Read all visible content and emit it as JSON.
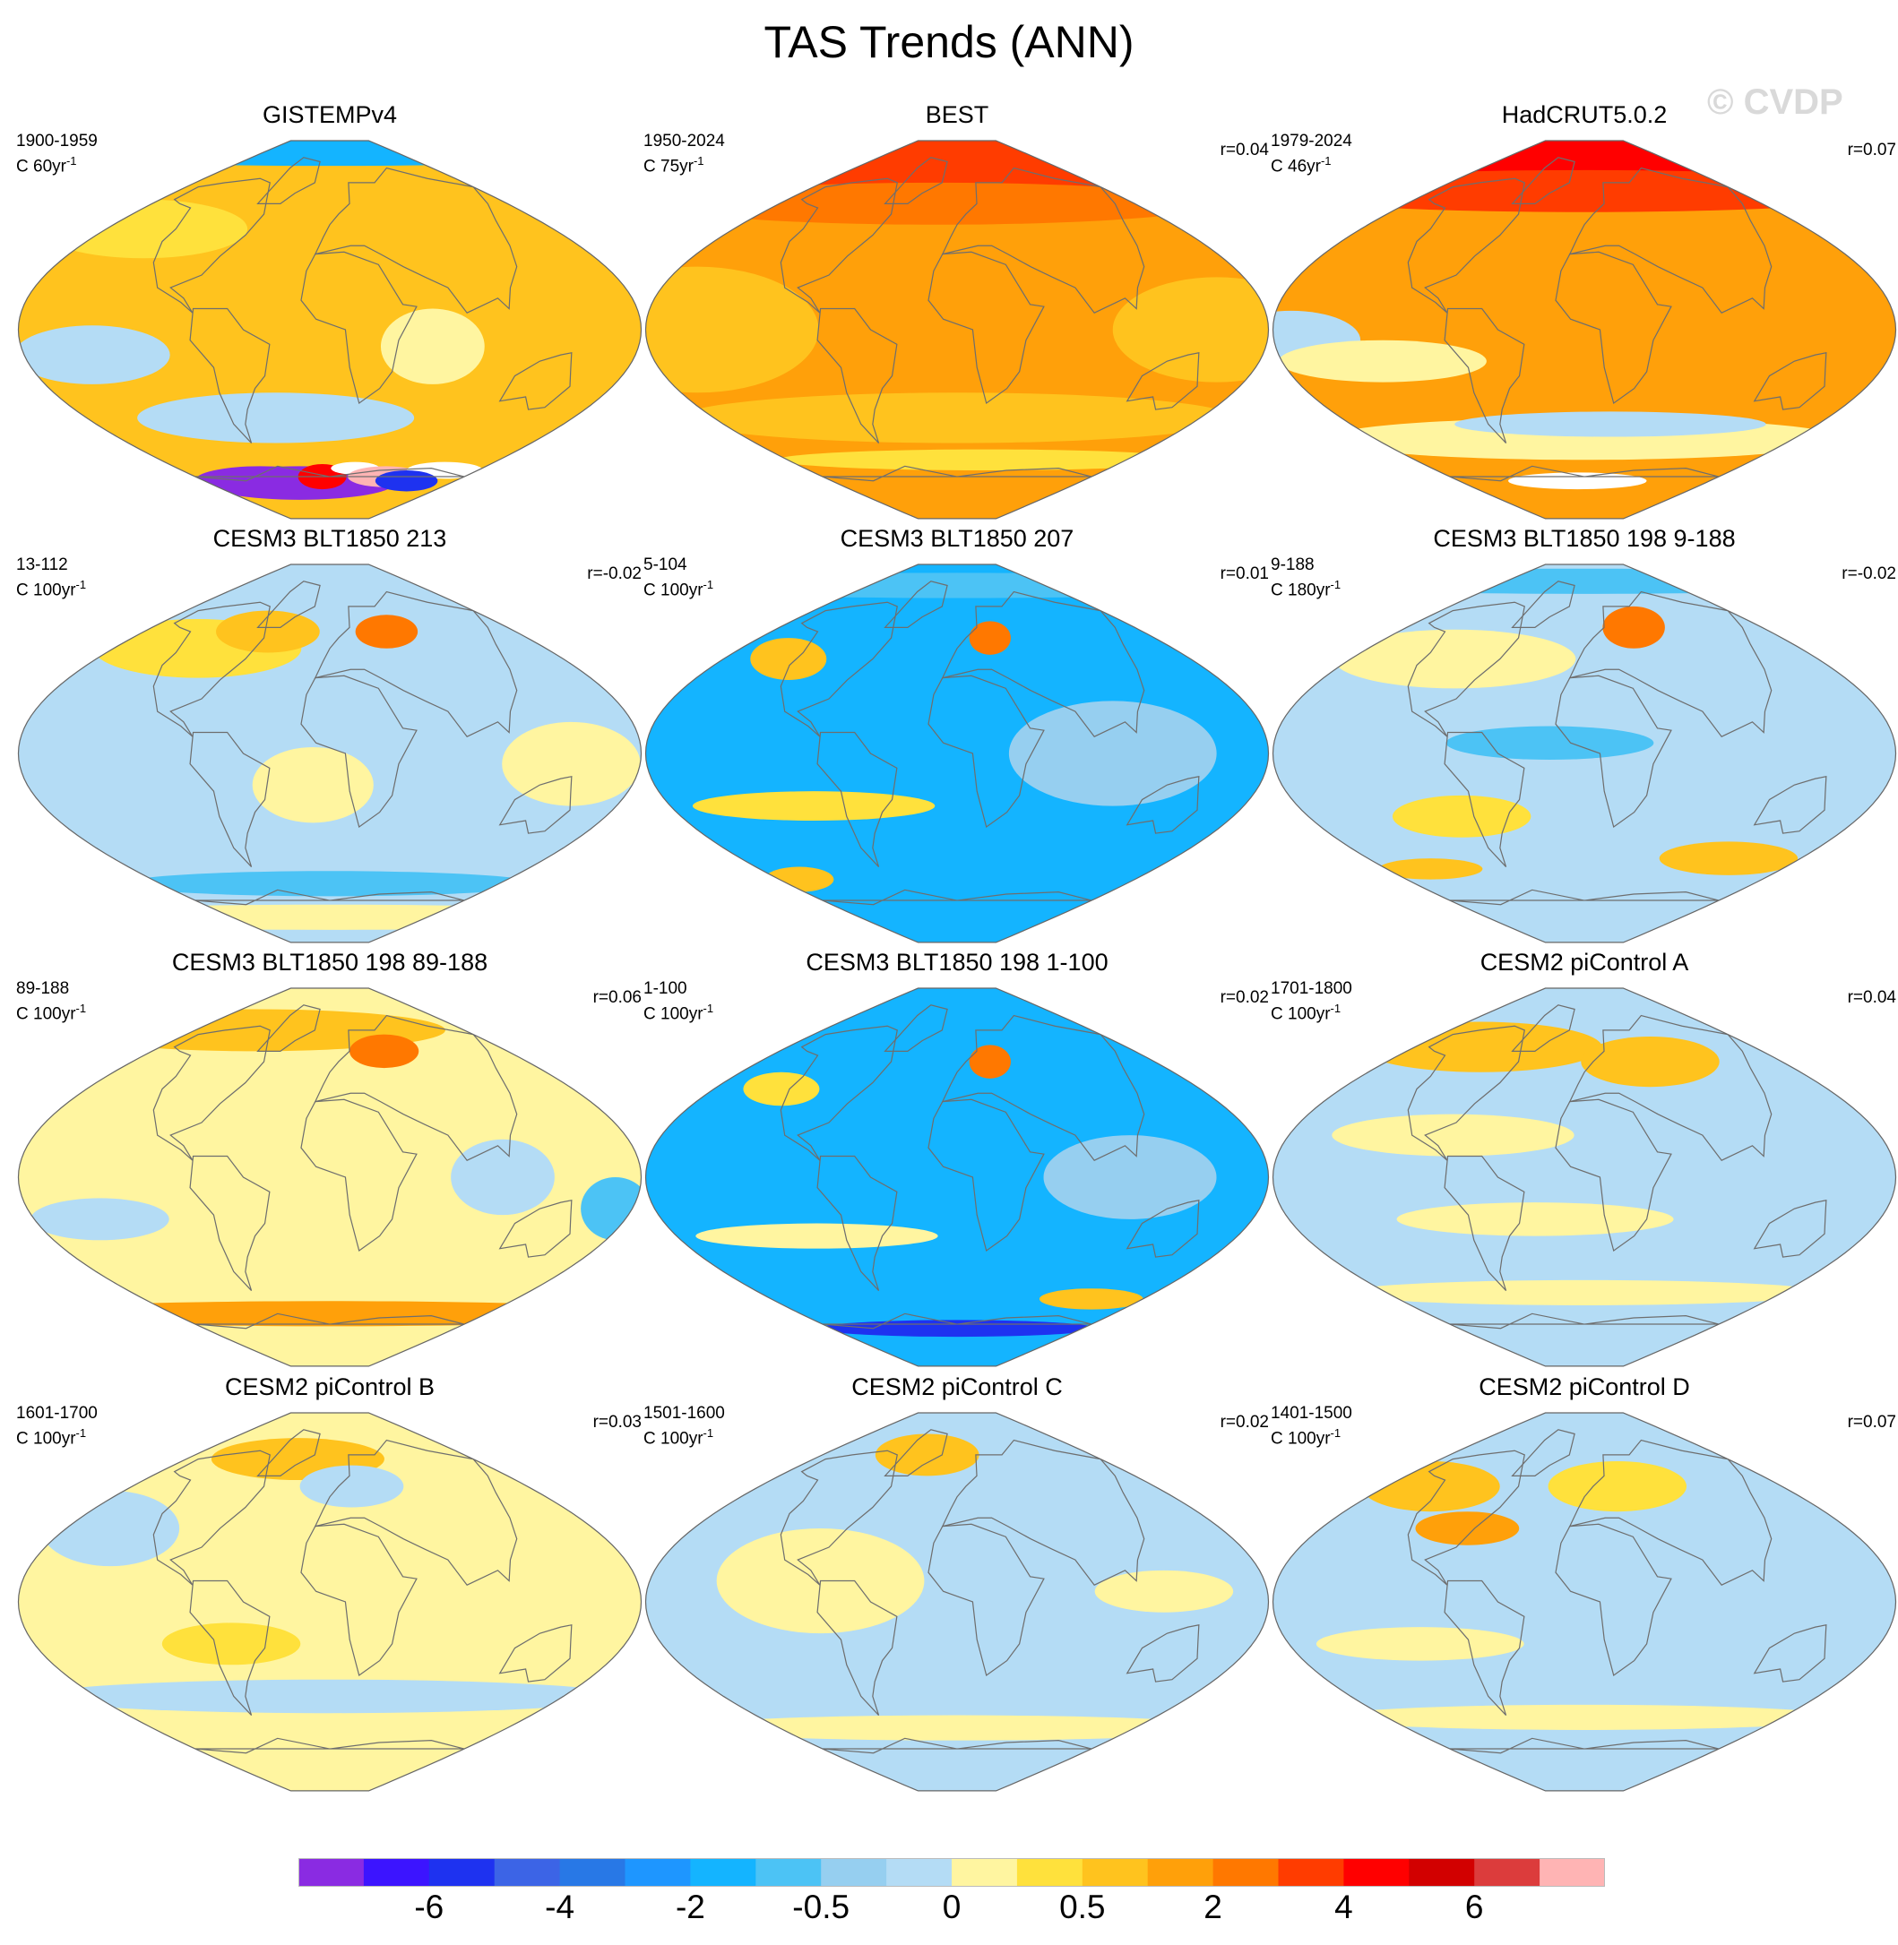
{
  "chart_data": {
    "type": "heatmap",
    "title": "TAS Trends (ANN)",
    "watermark": "© CVDP",
    "projection": "robinson",
    "colorbar": {
      "colors": [
        "#8a2be2",
        "#3c14ff",
        "#1e32f0",
        "#3c64e6",
        "#2878e6",
        "#1e96ff",
        "#14b4ff",
        "#4cc3f5",
        "#96cff0",
        "#b4dcf5",
        "#fff5a0",
        "#ffe13c",
        "#ffc31e",
        "#ffa00a",
        "#ff7800",
        "#ff3c00",
        "#ff0000",
        "#d20000",
        "#dc3c3c",
        "#ffb4b4"
      ],
      "tick_labels": [
        {
          "label": "-6",
          "index": 2
        },
        {
          "label": "-4",
          "index": 4
        },
        {
          "label": "-2",
          "index": 6
        },
        {
          "label": "-0.5",
          "index": 8
        },
        {
          "label": "0",
          "index": 10
        },
        {
          "label": "0.5",
          "index": 12
        },
        {
          "label": "2",
          "index": 14
        },
        {
          "label": "4",
          "index": 16
        },
        {
          "label": "6",
          "index": 18
        }
      ]
    },
    "panels": [
      {
        "title": "GISTEMPv4",
        "period": "1900-1959",
        "units": "C 60yr",
        "units_exp": "-1",
        "r": "",
        "base": "#ffc31e",
        "blobs": [
          {
            "lon": 0,
            "lat": 84,
            "rx": 190,
            "ry": 6,
            "c": "#14b4ff"
          },
          {
            "lon": -140,
            "lat": -12,
            "rx": 45,
            "ry": 14,
            "c": "#b4dcf5"
          },
          {
            "lon": -40,
            "lat": -42,
            "rx": 80,
            "ry": 12,
            "c": "#b4dcf5"
          },
          {
            "lon": 60,
            "lat": -8,
            "rx": 30,
            "ry": 18,
            "c": "#fff5a0"
          },
          {
            "lon": -150,
            "lat": 48,
            "rx": 60,
            "ry": 14,
            "c": "#ffe13c"
          },
          {
            "lon": -45,
            "lat": -73,
            "rx": 55,
            "ry": 8,
            "c": "#8a2be2"
          },
          {
            "lon": -100,
            "lat": -72,
            "rx": 38,
            "ry": 7,
            "c": "#8a2be2"
          },
          {
            "lon": -10,
            "lat": -70,
            "rx": 14,
            "ry": 6,
            "c": "#ff0000"
          },
          {
            "lon": 30,
            "lat": -66,
            "rx": 14,
            "ry": 3,
            "c": "#ffffff"
          },
          {
            "lon": 75,
            "lat": -70,
            "rx": 22,
            "ry": 5,
            "c": "#ffb4b4"
          },
          {
            "lon": 140,
            "lat": -67,
            "rx": 22,
            "ry": 4,
            "c": "#ffffff"
          },
          {
            "lon": 110,
            "lat": -72,
            "rx": 18,
            "ry": 5,
            "c": "#1e32f0"
          }
        ]
      },
      {
        "title": "BEST",
        "period": "1950-2024",
        "units": "C 75yr",
        "units_exp": "-1",
        "r": "r=0.04",
        "base": "#ffa00a",
        "blobs": [
          {
            "lon": 0,
            "lat": 78,
            "rx": 190,
            "ry": 12,
            "c": "#ff3c00"
          },
          {
            "lon": -20,
            "lat": 60,
            "rx": 160,
            "ry": 10,
            "c": "#ff7800"
          },
          {
            "lon": -150,
            "lat": 0,
            "rx": 70,
            "ry": 30,
            "c": "#ffc31e"
          },
          {
            "lon": 0,
            "lat": -42,
            "rx": 160,
            "ry": 12,
            "c": "#ffc31e"
          },
          {
            "lon": 150,
            "lat": 0,
            "rx": 60,
            "ry": 25,
            "c": "#ffc31e"
          },
          {
            "lon": 30,
            "lat": -62,
            "rx": 120,
            "ry": 5,
            "c": "#ffe13c"
          }
        ]
      },
      {
        "title": "HadCRUT5.0.2",
        "period": "1979-2024",
        "units": "C 46yr",
        "units_exp": "-1",
        "r": "r=0.07",
        "base": "#ffa00a",
        "blobs": [
          {
            "lon": 0,
            "lat": 82,
            "rx": 190,
            "ry": 8,
            "c": "#ff0000"
          },
          {
            "lon": 0,
            "lat": 66,
            "rx": 190,
            "ry": 10,
            "c": "#ff3c00"
          },
          {
            "lon": -170,
            "lat": -5,
            "rx": 40,
            "ry": 14,
            "c": "#b4dcf5"
          },
          {
            "lon": -120,
            "lat": -15,
            "rx": 60,
            "ry": 10,
            "c": "#fff5a0"
          },
          {
            "lon": 0,
            "lat": -52,
            "rx": 150,
            "ry": 10,
            "c": "#fff5a0"
          },
          {
            "lon": -10,
            "lat": -72,
            "rx": 40,
            "ry": 4,
            "c": "#ffffff"
          },
          {
            "lon": 20,
            "lat": -45,
            "rx": 90,
            "ry": 6,
            "c": "#b4dcf5"
          }
        ]
      },
      {
        "title": "CESM3 BLT1850 213",
        "period": "13-112",
        "units": "C 100yr",
        "units_exp": "-1",
        "r": "r=-0.02",
        "base": "#b4dcf5",
        "blobs": [
          {
            "lon": -110,
            "lat": 50,
            "rx": 60,
            "ry": 14,
            "c": "#ffe13c"
          },
          {
            "lon": -60,
            "lat": 58,
            "rx": 30,
            "ry": 10,
            "c": "#ffc31e"
          },
          {
            "lon": 55,
            "lat": 58,
            "rx": 18,
            "ry": 8,
            "c": "#ff7800"
          },
          {
            "lon": -10,
            "lat": -15,
            "rx": 35,
            "ry": 18,
            "c": "#fff5a0"
          },
          {
            "lon": 0,
            "lat": -62,
            "rx": 120,
            "ry": 6,
            "c": "#4cc3f5"
          },
          {
            "lon": 0,
            "lat": -78,
            "rx": 190,
            "ry": 6,
            "c": "#fff5a0"
          },
          {
            "lon": 140,
            "lat": -5,
            "rx": 40,
            "ry": 20,
            "c": "#fff5a0"
          }
        ]
      },
      {
        "title": "CESM3 BLT1850 207",
        "period": "5-104",
        "units": "C 100yr",
        "units_exp": "-1",
        "r": "r=0.01",
        "base": "#14b4ff",
        "blobs": [
          {
            "lon": -130,
            "lat": 45,
            "rx": 22,
            "ry": 10,
            "c": "#ffc31e"
          },
          {
            "lon": 30,
            "lat": 55,
            "rx": 12,
            "ry": 8,
            "c": "#ff7800"
          },
          {
            "lon": -90,
            "lat": -25,
            "rx": 70,
            "ry": 7,
            "c": "#ffe13c"
          },
          {
            "lon": 90,
            "lat": 0,
            "rx": 60,
            "ry": 25,
            "c": "#96cff0"
          },
          {
            "lon": 0,
            "lat": 80,
            "rx": 190,
            "ry": 6,
            "c": "#4cc3f5"
          },
          {
            "lon": -160,
            "lat": -60,
            "rx": 20,
            "ry": 6,
            "c": "#ffc31e"
          }
        ]
      },
      {
        "title": "CESM3 BLT1850 198 9-188",
        "period": "9-188",
        "units": "C 180yr",
        "units_exp": "-1",
        "r": "r=-0.02",
        "base": "#b4dcf5",
        "blobs": [
          {
            "lon": -100,
            "lat": 45,
            "rx": 70,
            "ry": 14,
            "c": "#fff5a0"
          },
          {
            "lon": 50,
            "lat": 60,
            "rx": 18,
            "ry": 10,
            "c": "#ff7800"
          },
          {
            "lon": 0,
            "lat": 82,
            "rx": 190,
            "ry": 6,
            "c": "#4cc3f5"
          },
          {
            "lon": -20,
            "lat": 5,
            "rx": 60,
            "ry": 8,
            "c": "#4cc3f5"
          },
          {
            "lon": -80,
            "lat": -30,
            "rx": 40,
            "ry": 10,
            "c": "#ffe13c"
          },
          {
            "lon": 120,
            "lat": -50,
            "rx": 40,
            "ry": 8,
            "c": "#ffc31e"
          },
          {
            "lon": -140,
            "lat": -55,
            "rx": 30,
            "ry": 5,
            "c": "#ffc31e"
          }
        ]
      },
      {
        "title": "CESM3 BLT1850 198 89-188",
        "period": "89-188",
        "units": "C 100yr",
        "units_exp": "-1",
        "r": "r=0.06",
        "base": "#fff5a0",
        "blobs": [
          {
            "lon": -100,
            "lat": 70,
            "rx": 110,
            "ry": 10,
            "c": "#ffc31e"
          },
          {
            "lon": 55,
            "lat": 60,
            "rx": 20,
            "ry": 8,
            "c": "#ff7800"
          },
          {
            "lon": -140,
            "lat": -20,
            "rx": 40,
            "ry": 10,
            "c": "#b4dcf5"
          },
          {
            "lon": 0,
            "lat": -65,
            "rx": 190,
            "ry": 6,
            "c": "#ffa00a"
          },
          {
            "lon": 100,
            "lat": 0,
            "rx": 30,
            "ry": 18,
            "c": "#b4dcf5"
          },
          {
            "lon": 170,
            "lat": -15,
            "rx": 20,
            "ry": 15,
            "c": "#4cc3f5"
          }
        ]
      },
      {
        "title": "CESM3 BLT1850 198 1-100",
        "period": "1-100",
        "units": "C 100yr",
        "units_exp": "-1",
        "r": "r=0.02",
        "base": "#14b4ff",
        "blobs": [
          {
            "lon": -130,
            "lat": 42,
            "rx": 22,
            "ry": 8,
            "c": "#ffe13c"
          },
          {
            "lon": 30,
            "lat": 55,
            "rx": 12,
            "ry": 8,
            "c": "#ff7800"
          },
          {
            "lon": -90,
            "lat": -28,
            "rx": 70,
            "ry": 6,
            "c": "#fff5a0"
          },
          {
            "lon": 100,
            "lat": 0,
            "rx": 50,
            "ry": 20,
            "c": "#96cff0"
          },
          {
            "lon": 0,
            "lat": -72,
            "rx": 80,
            "ry": 4,
            "c": "#1e32f0"
          },
          {
            "lon": 130,
            "lat": -58,
            "rx": 30,
            "ry": 5,
            "c": "#ffc31e"
          }
        ]
      },
      {
        "title": "CESM2 piControl A",
        "period": "1701-1800",
        "units": "C 100yr",
        "units_exp": "-1",
        "r": "r=0.04",
        "base": "#b4dcf5",
        "blobs": [
          {
            "lon": -110,
            "lat": 62,
            "rx": 70,
            "ry": 12,
            "c": "#ffc31e"
          },
          {
            "lon": 60,
            "lat": 55,
            "rx": 40,
            "ry": 12,
            "c": "#ffc31e"
          },
          {
            "lon": -80,
            "lat": 20,
            "rx": 70,
            "ry": 10,
            "c": "#fff5a0"
          },
          {
            "lon": -30,
            "lat": -20,
            "rx": 80,
            "ry": 8,
            "c": "#fff5a0"
          },
          {
            "lon": 0,
            "lat": -55,
            "rx": 140,
            "ry": 6,
            "c": "#fff5a0"
          }
        ]
      },
      {
        "title": "CESM2 piControl B",
        "period": "1601-1700",
        "units": "C 100yr",
        "units_exp": "-1",
        "r": "r=0.03",
        "base": "#fff5a0",
        "blobs": [
          {
            "lon": -40,
            "lat": 68,
            "rx": 50,
            "ry": 10,
            "c": "#ffc31e"
          },
          {
            "lon": 20,
            "lat": 55,
            "rx": 30,
            "ry": 10,
            "c": "#b4dcf5"
          },
          {
            "lon": -150,
            "lat": 35,
            "rx": 40,
            "ry": 18,
            "c": "#b4dcf5"
          },
          {
            "lon": -60,
            "lat": -20,
            "rx": 40,
            "ry": 10,
            "c": "#ffe13c"
          },
          {
            "lon": 0,
            "lat": -45,
            "rx": 170,
            "ry": 8,
            "c": "#b4dcf5"
          }
        ]
      },
      {
        "title": "CESM2 piControl C",
        "period": "1501-1600",
        "units": "C 100yr",
        "units_exp": "-1",
        "r": "r=0.02",
        "base": "#b4dcf5",
        "blobs": [
          {
            "lon": -40,
            "lat": 70,
            "rx": 30,
            "ry": 10,
            "c": "#ffc31e"
          },
          {
            "lon": -80,
            "lat": 10,
            "rx": 60,
            "ry": 25,
            "c": "#fff5a0"
          },
          {
            "lon": 0,
            "lat": -60,
            "rx": 160,
            "ry": 6,
            "c": "#fff5a0"
          },
          {
            "lon": 120,
            "lat": 5,
            "rx": 40,
            "ry": 10,
            "c": "#fff5a0"
          }
        ]
      },
      {
        "title": "CESM2 piControl D",
        "period": "1401-1500",
        "units": "C 100yr",
        "units_exp": "-1",
        "r": "r=0.07",
        "base": "#b4dcf5",
        "blobs": [
          {
            "lon": -140,
            "lat": 55,
            "rx": 40,
            "ry": 12,
            "c": "#ffc31e"
          },
          {
            "lon": -80,
            "lat": 35,
            "rx": 30,
            "ry": 8,
            "c": "#ffa00a"
          },
          {
            "lon": 30,
            "lat": 55,
            "rx": 40,
            "ry": 12,
            "c": "#ffe13c"
          },
          {
            "lon": -100,
            "lat": -20,
            "rx": 60,
            "ry": 8,
            "c": "#fff5a0"
          },
          {
            "lon": 0,
            "lat": -55,
            "rx": 150,
            "ry": 6,
            "c": "#fff5a0"
          }
        ]
      }
    ]
  }
}
